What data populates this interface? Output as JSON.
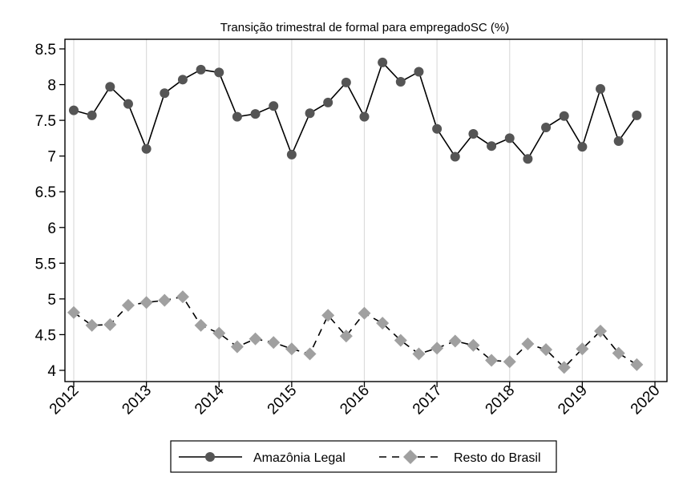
{
  "chart_data": {
    "type": "line",
    "title": "Transição trimestral de formal para empregadoSC (%)",
    "xlabel": "",
    "ylabel": "",
    "xlim": [
      2012,
      2020
    ],
    "ylim": [
      4,
      8.5
    ],
    "x_ticks": [
      "2012",
      "2013",
      "2014",
      "2015",
      "2016",
      "2017",
      "2018",
      "2019",
      "2020"
    ],
    "y_ticks": [
      "8.5",
      "8",
      "7.5",
      "7",
      "6.5",
      "6",
      "5.5",
      "5",
      "4.5",
      "4"
    ],
    "x_grid": true,
    "legend_position": "bottom",
    "x": [
      2012.0,
      2012.25,
      2012.5,
      2012.75,
      2013.0,
      2013.25,
      2013.5,
      2013.75,
      2014.0,
      2014.25,
      2014.5,
      2014.75,
      2015.0,
      2015.25,
      2015.5,
      2015.75,
      2016.0,
      2016.25,
      2016.5,
      2016.75,
      2017.0,
      2017.25,
      2017.5,
      2017.75,
      2018.0,
      2018.25,
      2018.5,
      2018.75,
      2019.0,
      2019.25,
      2019.5,
      2019.75
    ],
    "series": [
      {
        "name": "Amazônia Legal",
        "color": "#555555",
        "marker": "circle",
        "line_style": "solid",
        "values": [
          7.64,
          7.57,
          7.97,
          7.73,
          7.1,
          7.88,
          8.07,
          8.21,
          8.17,
          7.55,
          7.59,
          7.7,
          7.02,
          7.6,
          7.75,
          8.03,
          7.55,
          8.31,
          8.04,
          8.18,
          7.38,
          6.99,
          7.31,
          7.14,
          7.25,
          6.96,
          7.4,
          7.56,
          7.13,
          7.94,
          7.21,
          7.57
        ]
      },
      {
        "name": "Resto do Brasil",
        "color": "#a0a0a0",
        "marker": "diamond",
        "line_style": "dashed",
        "values": [
          4.81,
          4.63,
          4.64,
          4.91,
          4.95,
          4.98,
          5.03,
          4.63,
          4.52,
          4.33,
          4.44,
          4.39,
          4.3,
          4.23,
          4.77,
          4.48,
          4.8,
          4.66,
          4.42,
          4.23,
          4.31,
          4.41,
          4.35,
          4.14,
          4.12,
          4.37,
          4.29,
          4.04,
          4.3,
          4.55,
          4.24,
          4.08
        ]
      }
    ]
  }
}
